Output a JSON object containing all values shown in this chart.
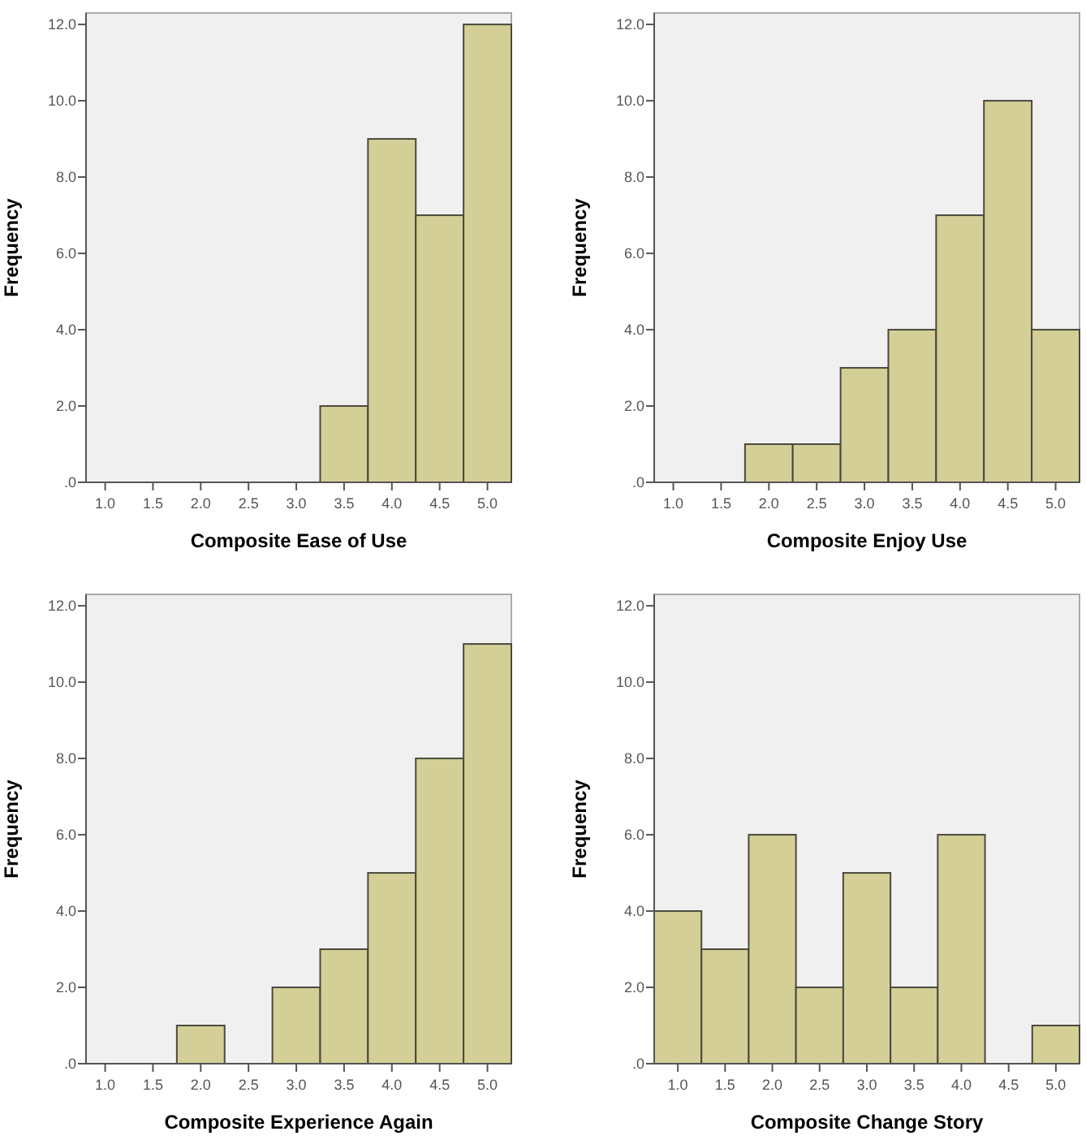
{
  "chart_data": [
    {
      "type": "histogram",
      "xlabel": "Composite Ease of Use",
      "ylabel": "Frequency",
      "bins": [
        0.75,
        1.25,
        1.75,
        2.25,
        2.75,
        3.25,
        3.75,
        4.25,
        4.75,
        5.25
      ],
      "values": [
        0,
        0,
        0,
        0,
        0,
        2,
        9,
        7,
        12
      ],
      "color": "#d4cf97",
      "xlim": [
        0.8,
        5.25
      ],
      "ylim": [
        0,
        12.3
      ],
      "xticks": [
        {
          "value": 1,
          "label": "1.0"
        },
        {
          "value": 1.5,
          "label": "1.5"
        },
        {
          "value": 2,
          "label": "2.0"
        },
        {
          "value": 2.5,
          "label": "2.5"
        },
        {
          "value": 3,
          "label": "3.0"
        },
        {
          "value": 3.5,
          "label": "3.5"
        },
        {
          "value": 4,
          "label": "4.0"
        },
        {
          "value": 4.5,
          "label": "4.5"
        },
        {
          "value": 5,
          "label": "5.0"
        }
      ],
      "yticks": [
        {
          "value": 0,
          "label": ".0"
        },
        {
          "value": 2,
          "label": "2.0"
        },
        {
          "value": 4,
          "label": "4.0"
        },
        {
          "value": 6,
          "label": "6.0"
        },
        {
          "value": 8,
          "label": "8.0"
        },
        {
          "value": 10,
          "label": "10.0"
        },
        {
          "value": 12,
          "label": "12.0"
        }
      ],
      "grid": false,
      "legend": false
    },
    {
      "type": "histogram",
      "xlabel": "Composite Enjoy Use",
      "ylabel": "Frequency",
      "bins": [
        0.75,
        1.25,
        1.75,
        2.25,
        2.75,
        3.25,
        3.75,
        4.25,
        4.75,
        5.25
      ],
      "values": [
        0,
        0,
        1,
        1,
        3,
        4,
        7,
        10,
        4
      ],
      "color": "#d4cf97",
      "xlim": [
        0.8,
        5.25
      ],
      "ylim": [
        0,
        12.3
      ],
      "xticks": [
        {
          "value": 1,
          "label": "1.0"
        },
        {
          "value": 1.5,
          "label": "1.5"
        },
        {
          "value": 2,
          "label": "2.0"
        },
        {
          "value": 2.5,
          "label": "2.5"
        },
        {
          "value": 3,
          "label": "3.0"
        },
        {
          "value": 3.5,
          "label": "3.5"
        },
        {
          "value": 4,
          "label": "4.0"
        },
        {
          "value": 4.5,
          "label": "4.5"
        },
        {
          "value": 5,
          "label": "5.0"
        }
      ],
      "yticks": [
        {
          "value": 0,
          "label": ".0"
        },
        {
          "value": 2,
          "label": "2.0"
        },
        {
          "value": 4,
          "label": "4.0"
        },
        {
          "value": 6,
          "label": "6.0"
        },
        {
          "value": 8,
          "label": "8.0"
        },
        {
          "value": 10,
          "label": "10.0"
        },
        {
          "value": 12,
          "label": "12.0"
        }
      ],
      "grid": false,
      "legend": false
    },
    {
      "type": "histogram",
      "xlabel": "Composite Experience Again",
      "ylabel": "Frequency",
      "bins": [
        0.75,
        1.25,
        1.75,
        2.25,
        2.75,
        3.25,
        3.75,
        4.25,
        4.75,
        5.25
      ],
      "values": [
        0,
        0,
        1,
        0,
        2,
        3,
        5,
        8,
        11
      ],
      "color": "#d4cf97",
      "xlim": [
        0.8,
        5.25
      ],
      "ylim": [
        0,
        12.3
      ],
      "xticks": [
        {
          "value": 1,
          "label": "1.0"
        },
        {
          "value": 1.5,
          "label": "1.5"
        },
        {
          "value": 2,
          "label": "2.0"
        },
        {
          "value": 2.5,
          "label": "2.5"
        },
        {
          "value": 3,
          "label": "3.0"
        },
        {
          "value": 3.5,
          "label": "3.5"
        },
        {
          "value": 4,
          "label": "4.0"
        },
        {
          "value": 4.5,
          "label": "4.5"
        },
        {
          "value": 5,
          "label": "5.0"
        }
      ],
      "yticks": [
        {
          "value": 0,
          "label": ".0"
        },
        {
          "value": 2,
          "label": "2.0"
        },
        {
          "value": 4,
          "label": "4.0"
        },
        {
          "value": 6,
          "label": "6.0"
        },
        {
          "value": 8,
          "label": "8.0"
        },
        {
          "value": 10,
          "label": "10.0"
        },
        {
          "value": 12,
          "label": "12.0"
        }
      ],
      "grid": false,
      "legend": false
    },
    {
      "type": "histogram",
      "xlabel": "Composite Change Story",
      "ylabel": "Frequency",
      "bins": [
        0.75,
        1.25,
        1.75,
        2.25,
        2.75,
        3.25,
        3.75,
        4.25,
        4.75,
        5.25
      ],
      "values": [
        4,
        3,
        6,
        2,
        5,
        2,
        6,
        0,
        1
      ],
      "color": "#d4cf97",
      "xlim": [
        0.75,
        5.25
      ],
      "ylim": [
        0,
        12.3
      ],
      "xticks": [
        {
          "value": 1,
          "label": "1.0"
        },
        {
          "value": 1.5,
          "label": "1.5"
        },
        {
          "value": 2,
          "label": "2.0"
        },
        {
          "value": 2.5,
          "label": "2.5"
        },
        {
          "value": 3,
          "label": "3.0"
        },
        {
          "value": 3.5,
          "label": "3.5"
        },
        {
          "value": 4,
          "label": "4.0"
        },
        {
          "value": 4.5,
          "label": "4.5"
        },
        {
          "value": 5,
          "label": "5.0"
        }
      ],
      "yticks": [
        {
          "value": 0,
          "label": ".0"
        },
        {
          "value": 2,
          "label": "2.0"
        },
        {
          "value": 4,
          "label": "4.0"
        },
        {
          "value": 6,
          "label": "6.0"
        },
        {
          "value": 8,
          "label": "8.0"
        },
        {
          "value": 10,
          "label": "10.0"
        },
        {
          "value": 12,
          "label": "12.0"
        }
      ],
      "grid": false,
      "legend": false
    }
  ]
}
